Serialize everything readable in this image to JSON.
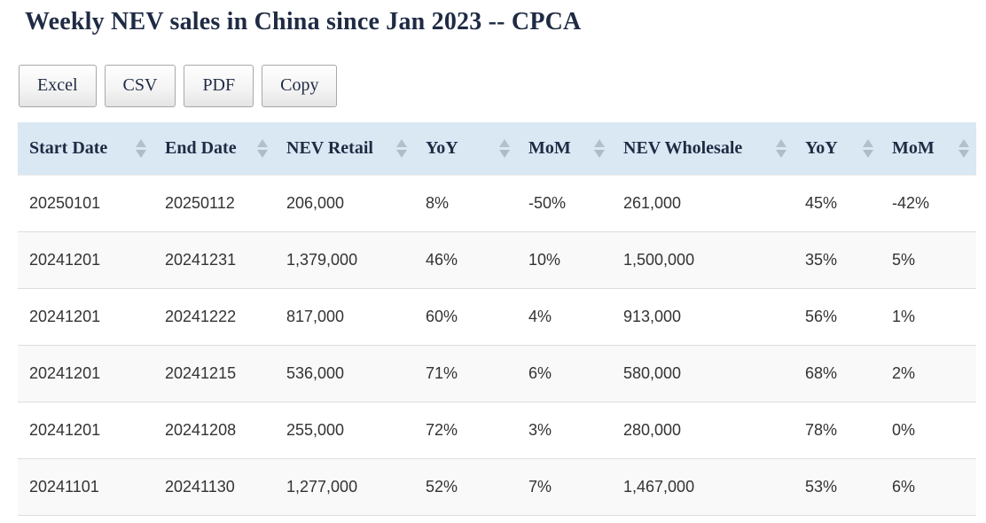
{
  "title": "Weekly NEV sales in China since Jan 2023 -- CPCA",
  "toolbar": {
    "buttons": [
      {
        "key": "excel",
        "label": "Excel"
      },
      {
        "key": "csv",
        "label": "CSV"
      },
      {
        "key": "pdf",
        "label": "PDF"
      },
      {
        "key": "copy",
        "label": "Copy"
      }
    ]
  },
  "table": {
    "columns": [
      {
        "key": "start-date",
        "label": "Start Date"
      },
      {
        "key": "end-date",
        "label": "End Date"
      },
      {
        "key": "nev-retail",
        "label": "NEV Retail"
      },
      {
        "key": "yoy-retail",
        "label": "YoY"
      },
      {
        "key": "mom-retail",
        "label": "MoM"
      },
      {
        "key": "nev-wholesale",
        "label": "NEV Wholesale"
      },
      {
        "key": "yoy-wholesale",
        "label": "YoY"
      },
      {
        "key": "mom-wholesale",
        "label": "MoM"
      }
    ],
    "rows": [
      [
        "20250101",
        "20250112",
        "206,000",
        "8%",
        "-50%",
        "261,000",
        "45%",
        "-42%"
      ],
      [
        "20241201",
        "20241231",
        "1,379,000",
        "46%",
        "10%",
        "1,500,000",
        "35%",
        "5%"
      ],
      [
        "20241201",
        "20241222",
        "817,000",
        "60%",
        "4%",
        "913,000",
        "56%",
        "1%"
      ],
      [
        "20241201",
        "20241215",
        "536,000",
        "71%",
        "6%",
        "580,000",
        "68%",
        "2%"
      ],
      [
        "20241201",
        "20241208",
        "255,000",
        "72%",
        "3%",
        "280,000",
        "78%",
        "0%"
      ],
      [
        "20241101",
        "20241130",
        "1,277,000",
        "52%",
        "7%",
        "1,467,000",
        "53%",
        "6%"
      ]
    ]
  },
  "colors": {
    "header_background": "#d9e8f3",
    "heading_text": "#1f2b44",
    "body_text": "#333333",
    "stripe_row": "#f9f9f9",
    "row_border": "#dddddd",
    "sort_arrow": "#b3c0cb"
  }
}
